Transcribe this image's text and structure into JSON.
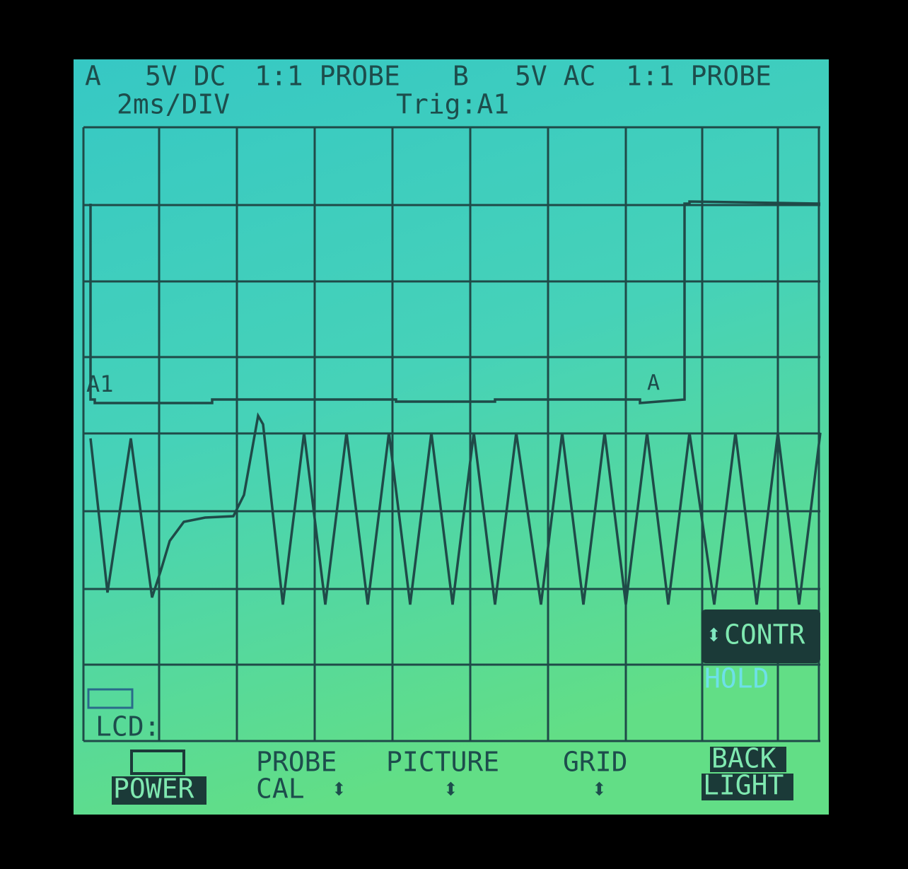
{
  "header": {
    "channel_a": "A",
    "a_range": "5V DC",
    "a_probe": "1:1 PROBE",
    "channel_b": "B",
    "b_range": "5V AC",
    "b_probe": "1:1 PROBE",
    "timebase": "2ms/DIV",
    "trigger": "Trig:A1"
  },
  "markers": {
    "trace_a": "A1",
    "trigger": "A"
  },
  "status": {
    "lcd": "LCD:",
    "contrast": "CONTR",
    "hold": "HOLD"
  },
  "menu": {
    "power": "POWER",
    "probe_cal": [
      "PROBE",
      "CAL"
    ],
    "picture": "PICTURE",
    "grid": "GRID",
    "backlight": [
      "BACK",
      "LIGHT"
    ]
  }
}
